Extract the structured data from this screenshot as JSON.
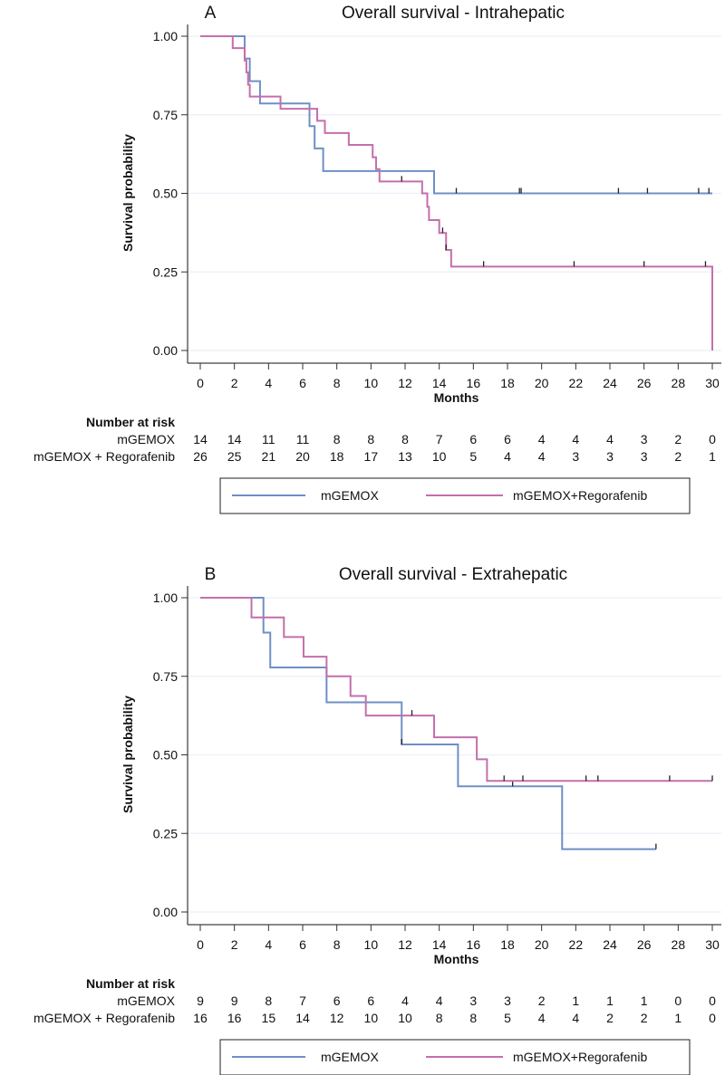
{
  "chart_data": [
    {
      "type": "line",
      "panel": "A",
      "title": "Overall survival - Intrahepatic",
      "xlabel": "Months",
      "ylabel": "Survival probability",
      "xlim": [
        0,
        30
      ],
      "ylim": [
        0,
        1
      ],
      "xticks": [
        0,
        2,
        4,
        6,
        8,
        10,
        12,
        14,
        16,
        18,
        20,
        22,
        24,
        26,
        28,
        30
      ],
      "yticks": [
        "0.00",
        "0.25",
        "0.50",
        "0.75",
        "1.00"
      ],
      "grid": true,
      "series": [
        {
          "name": "mGEMOX",
          "color": "#6f8fc6",
          "steps": [
            [
              0,
              1
            ],
            [
              2.6,
              0.929
            ],
            [
              2.9,
              0.857
            ],
            [
              3.5,
              0.786
            ],
            [
              6.4,
              0.714
            ],
            [
              6.7,
              0.643
            ],
            [
              7.2,
              0.571
            ],
            [
              13.7,
              0.5
            ],
            [
              30,
              0.5
            ]
          ],
          "censored": [
            15.0,
            18.7,
            18.8,
            24.5,
            26.2,
            29.2,
            29.8
          ]
        },
        {
          "name": "mGEMOX+Regorafenib",
          "color": "#c46fab",
          "steps": [
            [
              0,
              1
            ],
            [
              1.9,
              0.962
            ],
            [
              2.6,
              0.923
            ],
            [
              2.7,
              0.885
            ],
            [
              2.8,
              0.846
            ],
            [
              2.9,
              0.808
            ],
            [
              4.7,
              0.769
            ],
            [
              6.85,
              0.731
            ],
            [
              7.3,
              0.692
            ],
            [
              8.7,
              0.654
            ],
            [
              10.1,
              0.615
            ],
            [
              10.3,
              0.577
            ],
            [
              10.5,
              0.538
            ],
            [
              13.0,
              0.5
            ],
            [
              13.3,
              0.457
            ],
            [
              13.4,
              0.415
            ],
            [
              14.0,
              0.374
            ],
            [
              14.4,
              0.32
            ],
            [
              14.7,
              0.267
            ],
            [
              30,
              0
            ]
          ],
          "censored": [
            11.8,
            14.2,
            14.4,
            16.6,
            21.9,
            26.0,
            29.6
          ]
        }
      ],
      "risk_table": {
        "heading": "Number at risk",
        "rows": [
          {
            "label": "mGEMOX",
            "values": [
              14,
              14,
              11,
              11,
              8,
              8,
              8,
              7,
              6,
              6,
              4,
              4,
              4,
              3,
              2,
              0
            ]
          },
          {
            "label": "mGEMOX + Regorafenib",
            "values": [
              26,
              25,
              21,
              20,
              18,
              17,
              13,
              10,
              5,
              4,
              4,
              3,
              3,
              3,
              2,
              1
            ]
          }
        ]
      },
      "legend": [
        "mGEMOX",
        "mGEMOX+Regorafenib"
      ],
      "legend_position": "bottom"
    },
    {
      "type": "line",
      "panel": "B",
      "title": "Overall survival - Extrahepatic",
      "xlabel": "Months",
      "ylabel": "Survival probability",
      "xlim": [
        0,
        30
      ],
      "ylim": [
        0,
        1
      ],
      "xticks": [
        0,
        2,
        4,
        6,
        8,
        10,
        12,
        14,
        16,
        18,
        20,
        22,
        24,
        26,
        28,
        30
      ],
      "yticks": [
        "0.00",
        "0.25",
        "0.50",
        "0.75",
        "1.00"
      ],
      "grid": true,
      "series": [
        {
          "name": "mGEMOX",
          "color": "#6f8fc6",
          "steps": [
            [
              0,
              1
            ],
            [
              3.7,
              0.889
            ],
            [
              4.1,
              0.778
            ],
            [
              7.4,
              0.667
            ],
            [
              11.8,
              0.533
            ],
            [
              15.1,
              0.4
            ],
            [
              21.2,
              0.2
            ],
            [
              26.7,
              0.2
            ]
          ],
          "censored": [
            11.8,
            18.3,
            26.7
          ]
        },
        {
          "name": "mGEMOX+Regorafenib",
          "color": "#c46fab",
          "steps": [
            [
              0,
              1
            ],
            [
              3.0,
              0.9375
            ],
            [
              4.9,
              0.875
            ],
            [
              6.05,
              0.8125
            ],
            [
              7.4,
              0.75
            ],
            [
              8.8,
              0.6875
            ],
            [
              9.7,
              0.625
            ],
            [
              13.7,
              0.556
            ],
            [
              16.2,
              0.486
            ],
            [
              16.8,
              0.417
            ],
            [
              30,
              0.417
            ]
          ],
          "censored": [
            12.4,
            17.8,
            18.9,
            22.6,
            23.3,
            27.5,
            30.0
          ]
        }
      ],
      "risk_table": {
        "heading": "Number at risk",
        "rows": [
          {
            "label": "mGEMOX",
            "values": [
              9,
              9,
              8,
              7,
              6,
              6,
              4,
              4,
              3,
              3,
              2,
              1,
              1,
              1,
              0,
              0
            ]
          },
          {
            "label": "mGEMOX + Regorafenib",
            "values": [
              16,
              16,
              15,
              14,
              12,
              10,
              10,
              8,
              8,
              5,
              4,
              4,
              2,
              2,
              1,
              0
            ]
          }
        ]
      },
      "legend": [
        "mGEMOX",
        "mGEMOX+Regorafenib"
      ],
      "legend_position": "bottom"
    }
  ]
}
